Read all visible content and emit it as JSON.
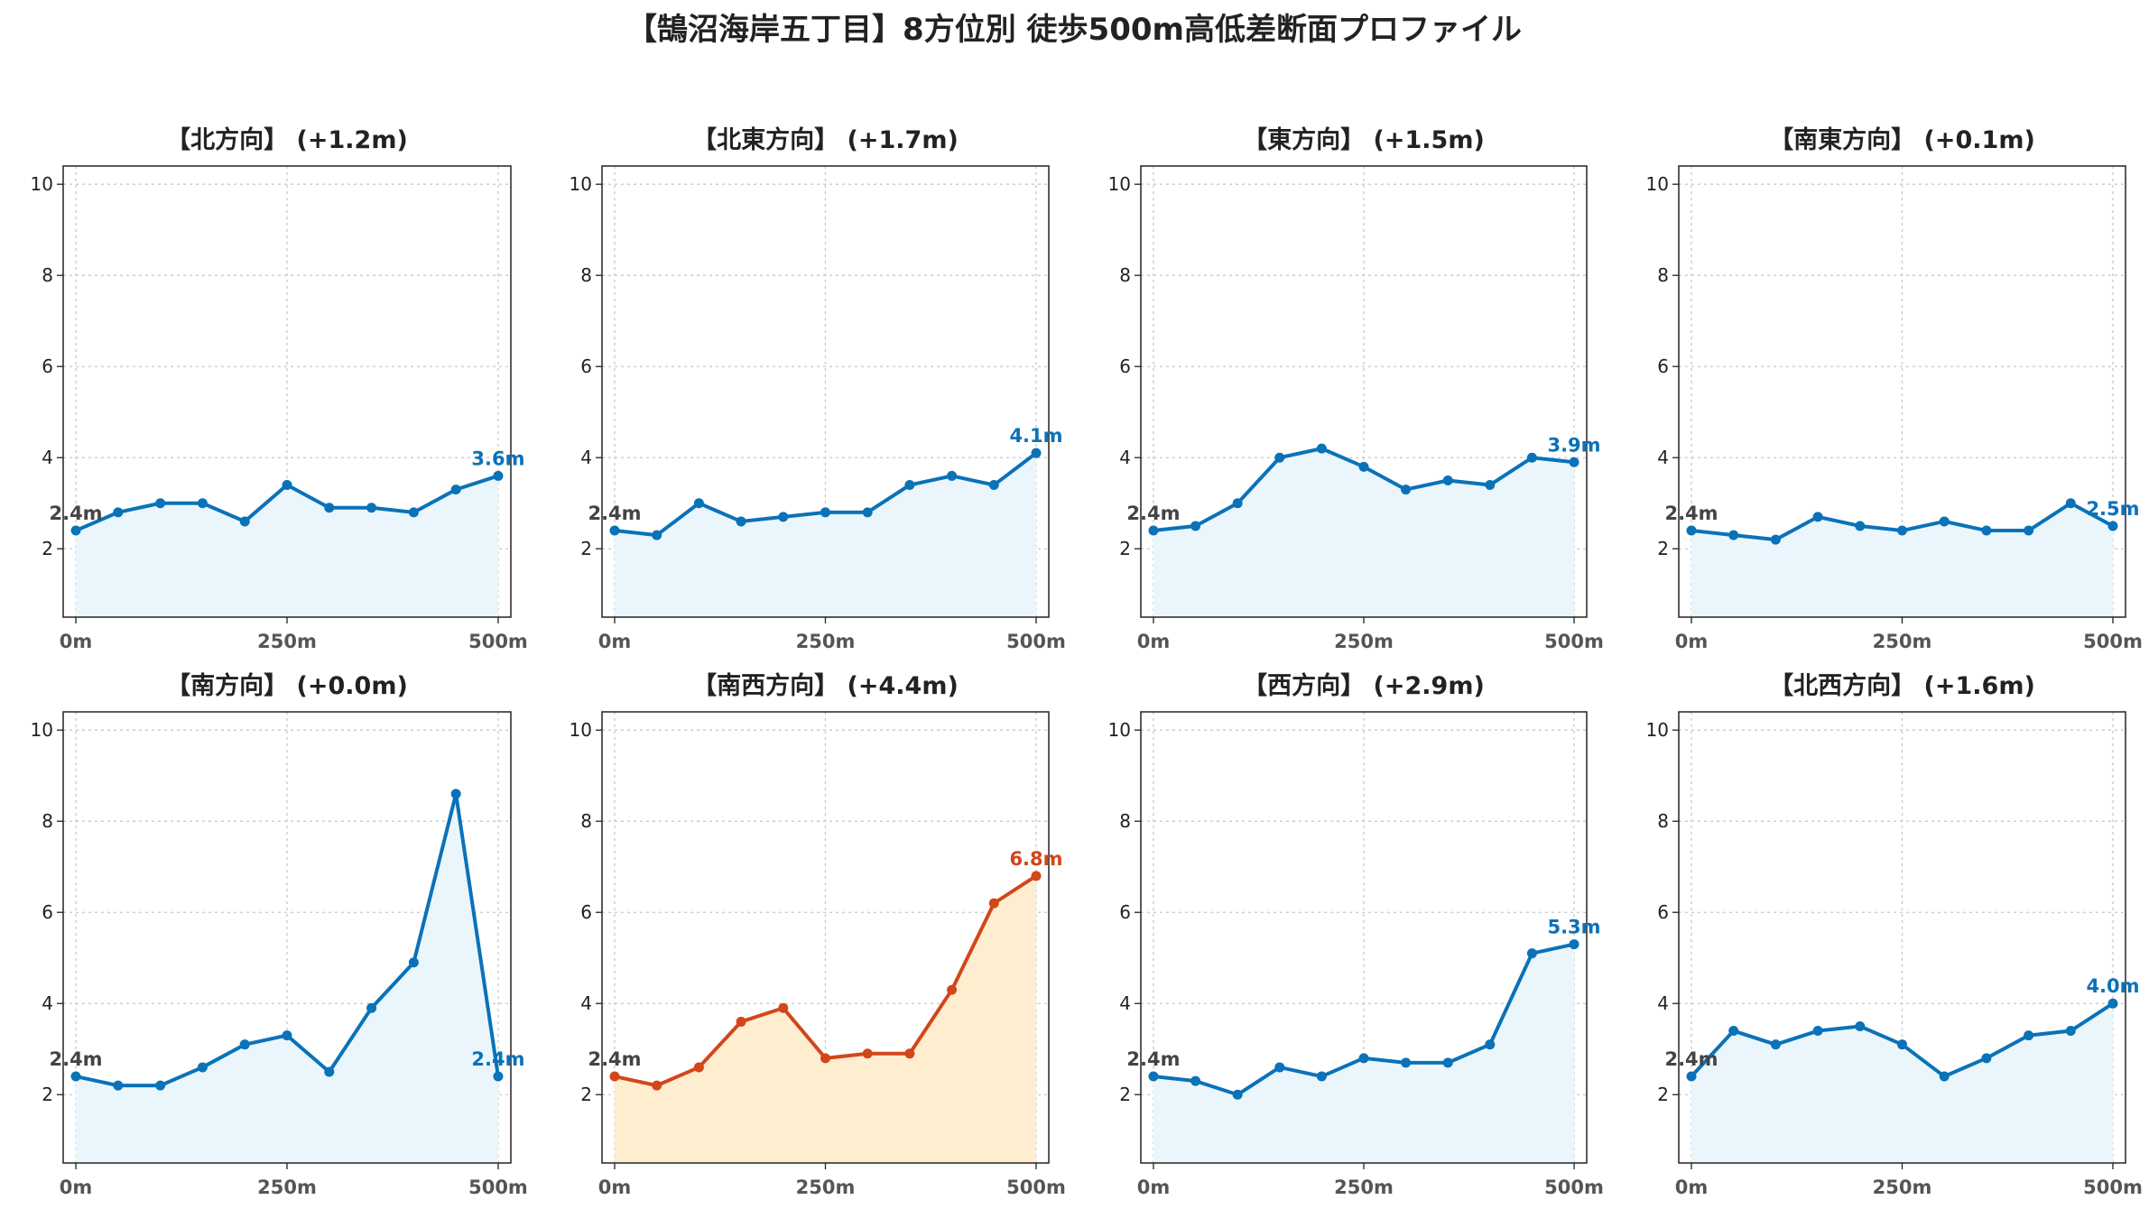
{
  "title": "【鵠沼海岸五丁目】8方位別 徒歩500m高低差断面プロファイル",
  "colors": {
    "normal_line": "#0a72b8",
    "normal_fill": "#eaf6fc",
    "highlight_line": "#d2461a",
    "highlight_fill": "#ffedd0",
    "grid": "#c8c8c8",
    "start_label": "#444444"
  },
  "chart_data": [
    {
      "type": "area",
      "title": "【北方向】 (+1.2m)",
      "x": [
        0,
        50,
        100,
        150,
        200,
        250,
        300,
        350,
        400,
        450,
        500
      ],
      "values": [
        2.4,
        2.8,
        3.0,
        3.0,
        2.6,
        3.4,
        2.9,
        2.9,
        2.8,
        3.3,
        3.6
      ],
      "ylim": [
        0.5,
        10.4
      ],
      "yticks": [
        "2",
        "4",
        "6",
        "8",
        "10"
      ],
      "xticks": [
        "0m",
        "250m",
        "500m"
      ],
      "start_label": "2.4m",
      "end_label": "3.6m",
      "highlight": false
    },
    {
      "type": "area",
      "title": "【北東方向】 (+1.7m)",
      "x": [
        0,
        50,
        100,
        150,
        200,
        250,
        300,
        350,
        400,
        450,
        500
      ],
      "values": [
        2.4,
        2.3,
        3.0,
        2.6,
        2.7,
        2.8,
        2.8,
        3.4,
        3.6,
        3.4,
        4.1
      ],
      "ylim": [
        0.5,
        10.4
      ],
      "yticks": [
        "2",
        "4",
        "6",
        "8",
        "10"
      ],
      "xticks": [
        "0m",
        "250m",
        "500m"
      ],
      "start_label": "2.4m",
      "end_label": "4.1m",
      "highlight": false
    },
    {
      "type": "area",
      "title": "【東方向】 (+1.5m)",
      "x": [
        0,
        50,
        100,
        150,
        200,
        250,
        300,
        350,
        400,
        450,
        500
      ],
      "values": [
        2.4,
        2.5,
        3.0,
        4.0,
        4.2,
        3.8,
        3.3,
        3.5,
        3.4,
        4.0,
        3.9
      ],
      "ylim": [
        0.5,
        10.4
      ],
      "yticks": [
        "2",
        "4",
        "6",
        "8",
        "10"
      ],
      "xticks": [
        "0m",
        "250m",
        "500m"
      ],
      "start_label": "2.4m",
      "end_label": "3.9m",
      "highlight": false
    },
    {
      "type": "area",
      "title": "【南東方向】 (+0.1m)",
      "x": [
        0,
        50,
        100,
        150,
        200,
        250,
        300,
        350,
        400,
        450,
        500
      ],
      "values": [
        2.4,
        2.3,
        2.2,
        2.7,
        2.5,
        2.4,
        2.6,
        2.4,
        2.4,
        3.0,
        2.5
      ],
      "ylim": [
        0.5,
        10.4
      ],
      "yticks": [
        "2",
        "4",
        "6",
        "8",
        "10"
      ],
      "xticks": [
        "0m",
        "250m",
        "500m"
      ],
      "start_label": "2.4m",
      "end_label": "2.5m",
      "highlight": false
    },
    {
      "type": "area",
      "title": "【南方向】 (+0.0m)",
      "x": [
        0,
        50,
        100,
        150,
        200,
        250,
        300,
        350,
        400,
        450,
        500
      ],
      "values": [
        2.4,
        2.2,
        2.2,
        2.6,
        3.1,
        3.3,
        2.5,
        3.9,
        4.9,
        8.6,
        2.4
      ],
      "ylim": [
        0.5,
        10.4
      ],
      "yticks": [
        "2",
        "4",
        "6",
        "8",
        "10"
      ],
      "xticks": [
        "0m",
        "250m",
        "500m"
      ],
      "start_label": "2.4m",
      "end_label": "2.4m",
      "highlight": false
    },
    {
      "type": "area",
      "title": "【南西方向】 (+4.4m)",
      "x": [
        0,
        50,
        100,
        150,
        200,
        250,
        300,
        350,
        400,
        450,
        500
      ],
      "values": [
        2.4,
        2.2,
        2.6,
        3.6,
        3.9,
        2.8,
        2.9,
        2.9,
        4.3,
        6.2,
        6.8
      ],
      "ylim": [
        0.5,
        10.4
      ],
      "yticks": [
        "2",
        "4",
        "6",
        "8",
        "10"
      ],
      "xticks": [
        "0m",
        "250m",
        "500m"
      ],
      "start_label": "2.4m",
      "end_label": "6.8m",
      "highlight": true
    },
    {
      "type": "area",
      "title": "【西方向】 (+2.9m)",
      "x": [
        0,
        50,
        100,
        150,
        200,
        250,
        300,
        350,
        400,
        450,
        500
      ],
      "values": [
        2.4,
        2.3,
        2.0,
        2.6,
        2.4,
        2.8,
        2.7,
        2.7,
        3.1,
        5.1,
        5.3
      ],
      "ylim": [
        0.5,
        10.4
      ],
      "yticks": [
        "2",
        "4",
        "6",
        "8",
        "10"
      ],
      "xticks": [
        "0m",
        "250m",
        "500m"
      ],
      "start_label": "2.4m",
      "end_label": "5.3m",
      "highlight": false
    },
    {
      "type": "area",
      "title": "【北西方向】 (+1.6m)",
      "x": [
        0,
        50,
        100,
        150,
        200,
        250,
        300,
        350,
        400,
        450,
        500
      ],
      "values": [
        2.4,
        3.4,
        3.1,
        3.4,
        3.5,
        3.1,
        2.4,
        2.8,
        3.3,
        3.4,
        4.0
      ],
      "ylim": [
        0.5,
        10.4
      ],
      "yticks": [
        "2",
        "4",
        "6",
        "8",
        "10"
      ],
      "xticks": [
        "0m",
        "250m",
        "500m"
      ],
      "start_label": "2.4m",
      "end_label": "4.0m",
      "highlight": false
    }
  ]
}
